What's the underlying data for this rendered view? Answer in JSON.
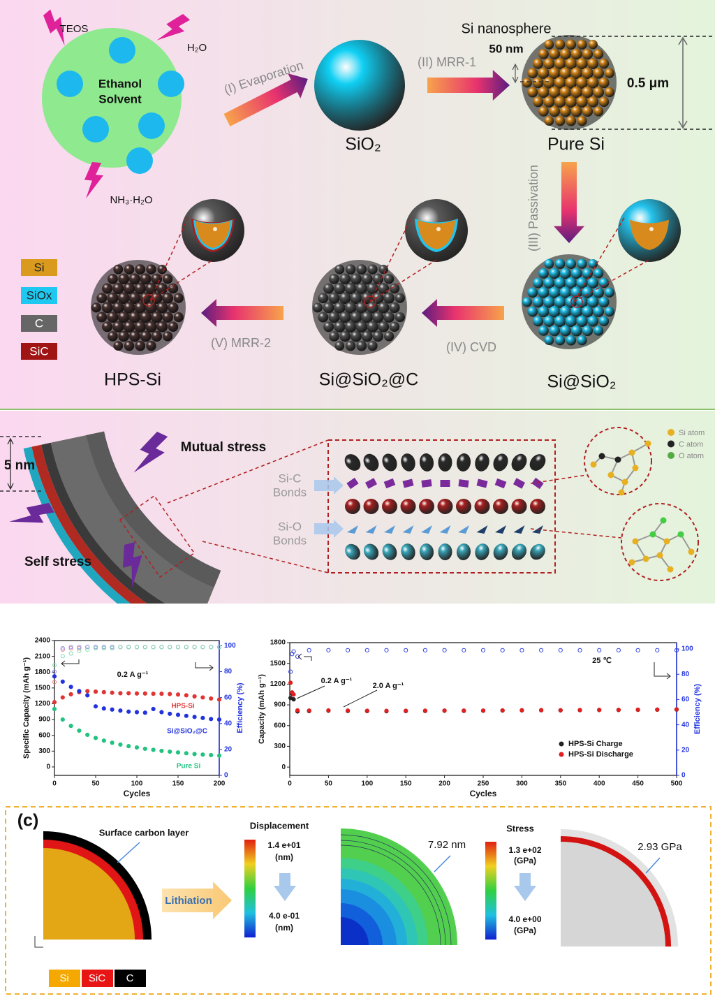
{
  "synthesis": {
    "teos": "TEOS",
    "h2o": "H₂O",
    "solvent": [
      "Ethanol",
      "Solvent"
    ],
    "ammonia": "NH₃·H₂O",
    "step1": "(I) Evaporation",
    "sio2": "SiO₂",
    "step2": "(II) MRR-1",
    "nanosphere": "Si nanosphere",
    "small_size": "50 nm",
    "big_size": "0.5 μm",
    "pure_si": "Pure Si",
    "step3": "(III) Passivation",
    "si_sio2": "Si@SiO₂",
    "step4": "(IV) CVD",
    "si_sio2_c": "Si@SiO₂@C",
    "step5": "(V) MRR-2",
    "hps_si": "HPS-Si",
    "legend": [
      "Si",
      "SiOx",
      "C",
      "SiC"
    ]
  },
  "stress_model": {
    "thickness": "5 nm",
    "mutual": "Mutual stress",
    "self": "Self stress",
    "sic_bonds": [
      "Si-C",
      "Bonds"
    ],
    "sio_bonds": [
      "Si-O",
      "Bonds"
    ],
    "atoms": [
      "Si atom",
      "C atom",
      "O atom"
    ]
  },
  "chart_data": [
    {
      "type": "scatter",
      "xlabel": "Cycles",
      "ylabel": "Specific Capacity (mAh g⁻¹)",
      "y2label": "Efficiency (%)",
      "annotations": [
        "0.2 A g⁻¹"
      ],
      "xlim": [
        0,
        200
      ],
      "xticks": [
        0,
        50,
        100,
        150,
        200
      ],
      "ylim": [
        -160,
        2400
      ],
      "yticks": [
        0,
        300,
        600,
        900,
        1200,
        1500,
        1800,
        2100,
        2400
      ],
      "y2lim": [
        0,
        104
      ],
      "y2ticks": [
        0,
        20,
        40,
        60,
        80,
        100
      ],
      "x": [
        0,
        10,
        20,
        30,
        40,
        50,
        60,
        70,
        80,
        90,
        100,
        110,
        120,
        130,
        140,
        150,
        160,
        170,
        180,
        190,
        200
      ],
      "series": [
        {
          "name": "HPS-Si",
          "color": "#e03535",
          "values": [
            1230,
            1320,
            1380,
            1420,
            1440,
            1430,
            1420,
            1410,
            1400,
            1400,
            1395,
            1395,
            1390,
            1390,
            1385,
            1375,
            1360,
            1340,
            1320,
            1300,
            1280
          ]
        },
        {
          "name": "Si@SiO₂@C",
          "color": "#2233dd",
          "values": [
            1720,
            1620,
            1520,
            1440,
            1360,
            1150,
            1110,
            1090,
            1070,
            1050,
            1040,
            1030,
            1100,
            1040,
            1010,
            990,
            970,
            950,
            930,
            910,
            900
          ]
        },
        {
          "name": "Pure Si",
          "color": "#22c27f",
          "values": [
            1100,
            900,
            780,
            690,
            610,
            550,
            500,
            460,
            425,
            395,
            370,
            345,
            325,
            305,
            290,
            275,
            260,
            245,
            235,
            225,
            215
          ]
        },
        {
          "color": "#f08a8a",
          "axis": "y2",
          "values": [
            72,
            97,
            98,
            98,
            99,
            99,
            99,
            99,
            99,
            99,
            99,
            99,
            99,
            99,
            99,
            99,
            99,
            99,
            99,
            99,
            99
          ]
        },
        {
          "color": "#8a95f0",
          "axis": "y2",
          "values": [
            80,
            98,
            99,
            99,
            99,
            99,
            99,
            99,
            99,
            99,
            99,
            99,
            99,
            99,
            99,
            99,
            99,
            99,
            99,
            99,
            99
          ]
        },
        {
          "color": "#85dcb5",
          "axis": "y2",
          "values": [
            85,
            92,
            94,
            96,
            97,
            98,
            98,
            98,
            99,
            99,
            99,
            99,
            99,
            99,
            99,
            99,
            99,
            99,
            99,
            99,
            99
          ]
        }
      ]
    },
    {
      "type": "scatter",
      "xlabel": "Cycles",
      "ylabel": "Capacity (mAh g⁻¹)",
      "y2label": "Efficiency (%)",
      "annotations": [
        "25 ℃",
        "0.2 A g⁻¹",
        "2.0 A g⁻¹"
      ],
      "legend": "lower right",
      "xlim": [
        0,
        500
      ],
      "xticks": [
        0,
        50,
        100,
        150,
        200,
        250,
        300,
        350,
        400,
        450,
        500
      ],
      "ylim": [
        -120,
        1800
      ],
      "yticks": [
        0,
        300,
        600,
        900,
        1200,
        1500,
        1800
      ],
      "y2lim": [
        0,
        105
      ],
      "y2ticks": [
        0,
        20,
        40,
        60,
        80,
        100
      ],
      "x": [
        1,
        3,
        5,
        10,
        25,
        50,
        75,
        100,
        125,
        150,
        175,
        200,
        225,
        250,
        275,
        300,
        325,
        350,
        375,
        400,
        425,
        450,
        475,
        500
      ],
      "series": [
        {
          "name": "HPS-Si Charge",
          "color": "#222222",
          "values": [
            1000,
            1060,
            980,
            805,
            810,
            815,
            812,
            810,
            808,
            810,
            812,
            815,
            813,
            815,
            818,
            820,
            822,
            820,
            823,
            825,
            826,
            828,
            830,
            832
          ]
        },
        {
          "name": "HPS-Si Discharge",
          "color": "#e02020",
          "values": [
            1220,
            1080,
            1050,
            820,
            818,
            820,
            818,
            815,
            814,
            815,
            816,
            818,
            817,
            818,
            820,
            822,
            824,
            823,
            825,
            827,
            828,
            830,
            832,
            835
          ]
        },
        {
          "color": "#3344dd",
          "axis": "y2",
          "values": [
            82,
            96,
            98,
            94,
            99,
            99,
            99,
            99,
            99,
            99,
            99,
            99,
            99,
            99,
            99,
            99,
            99,
            99,
            99,
            99,
            99,
            99,
            99,
            99
          ]
        }
      ]
    }
  ],
  "simulation": {
    "panel": "(c)",
    "carbon": "Surface carbon layer",
    "lithiation": "Lithiation",
    "displacement": "Displacement",
    "disp_max": [
      "1.4 e+01",
      "(nm)"
    ],
    "disp_min": [
      "4.0 e-01",
      "(nm)"
    ],
    "disp_value": "7.92 nm",
    "stress": "Stress",
    "stress_max": [
      "1.3 e+02",
      "(GPa)"
    ],
    "stress_min": [
      "4.0 e+00",
      "(GPa)"
    ],
    "stress_value": "2.93 GPa",
    "legend": [
      "Si",
      "SiC",
      "C"
    ]
  }
}
